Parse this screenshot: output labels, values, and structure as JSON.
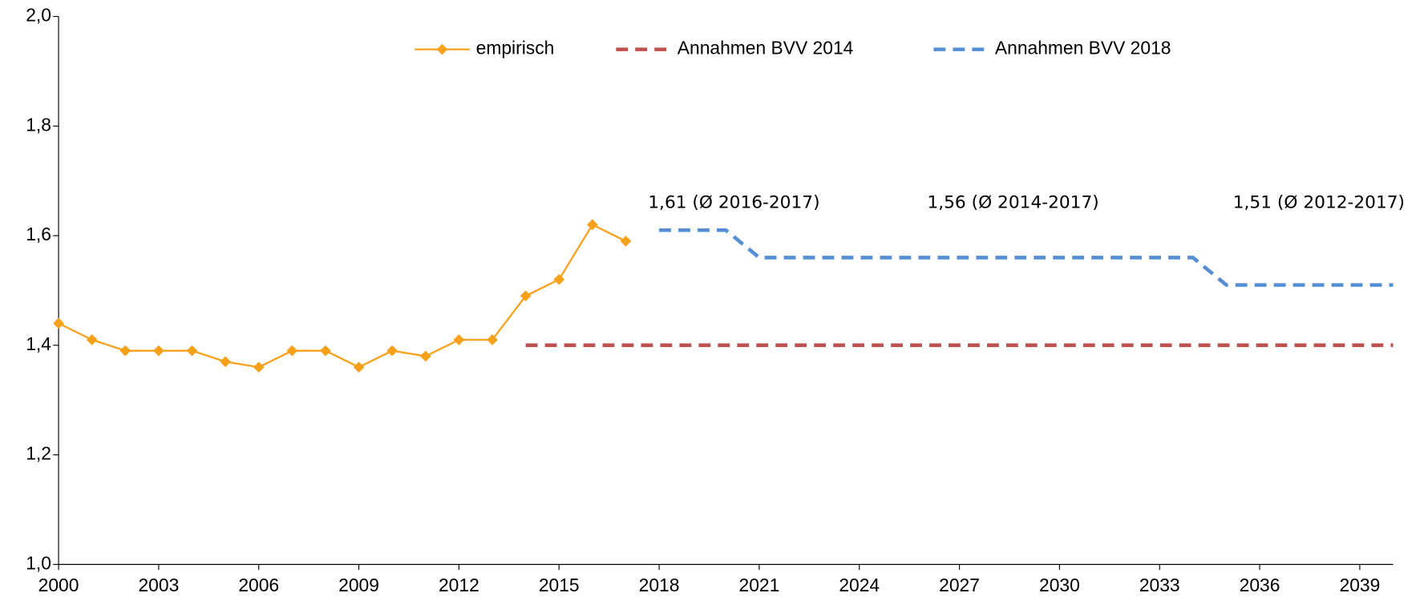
{
  "chart_data": {
    "type": "line",
    "xlim": [
      2000,
      2040
    ],
    "xticks": [
      2000,
      2003,
      2006,
      2009,
      2012,
      2015,
      2018,
      2021,
      2024,
      2027,
      2030,
      2033,
      2036,
      2039
    ],
    "ylim": [
      1.0,
      2.0
    ],
    "yticks": [
      {
        "value": 1.0,
        "label": "1,0"
      },
      {
        "value": 1.2,
        "label": "1,2"
      },
      {
        "value": 1.4,
        "label": "1,4"
      },
      {
        "value": 1.6,
        "label": "1,6"
      },
      {
        "value": 1.8,
        "label": "1,8"
      },
      {
        "value": 2.0,
        "label": "2,0"
      }
    ],
    "grid": false,
    "legend": "top",
    "series": [
      {
        "name": "empirisch",
        "color": "#f7a11a",
        "style": "solid",
        "marker": "diamond",
        "x": [
          2000,
          2001,
          2002,
          2003,
          2004,
          2005,
          2006,
          2007,
          2008,
          2009,
          2010,
          2011,
          2012,
          2013,
          2014,
          2015,
          2016,
          2017
        ],
        "values": [
          1.44,
          1.41,
          1.39,
          1.39,
          1.39,
          1.37,
          1.36,
          1.39,
          1.39,
          1.36,
          1.39,
          1.38,
          1.41,
          1.41,
          1.49,
          1.52,
          1.62,
          1.59
        ]
      },
      {
        "name": "Annahmen BVV 2014",
        "color": "#c0504d",
        "style": "dashed",
        "x": [
          2014,
          2040
        ],
        "values": [
          1.4,
          1.4
        ]
      },
      {
        "name": "Annahmen BVV 2018",
        "color": "#558ed5",
        "style": "dashed",
        "x": [
          2018,
          2020,
          2021,
          2034,
          2035,
          2040
        ],
        "values": [
          1.61,
          1.61,
          1.56,
          1.56,
          1.51,
          1.51
        ]
      }
    ],
    "annotations": [
      "1,61 (Ø 2016-2017)",
      "1,56 (Ø 2014-2017)",
      "1,51 (Ø 2012-2017)"
    ]
  }
}
